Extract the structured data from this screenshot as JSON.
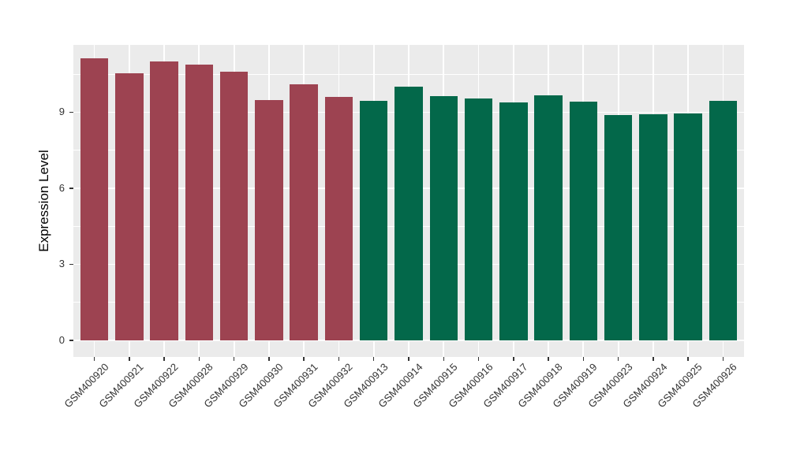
{
  "figure": {
    "background": "#FFFFFF",
    "panel_background": "#EBEBEB",
    "grid_color": "#FFFFFF",
    "axis_text_color": "#333333",
    "tick_color": "#333333",
    "axis_title_color": "#000000"
  },
  "chart_data": {
    "type": "bar",
    "title": "",
    "xlabel": "",
    "ylabel": "Expression Level",
    "ylim": [
      -0.65,
      11.66
    ],
    "yticks": [
      0,
      3,
      6,
      9
    ],
    "yminor": [
      1.5,
      4.5,
      7.5,
      10.5
    ],
    "grid": true,
    "legend_position": "none",
    "x_tick_rotation": 45,
    "bar_colors": {
      "maroon": "#9D4351",
      "green": "#03684A"
    },
    "categories": [
      "GSM400920",
      "GSM400921",
      "GSM400922",
      "GSM400928",
      "GSM400929",
      "GSM400930",
      "GSM400931",
      "GSM400932",
      "GSM400913",
      "GSM400914",
      "GSM400915",
      "GSM400916",
      "GSM400917",
      "GSM400918",
      "GSM400919",
      "GSM400923",
      "GSM400924",
      "GSM400925",
      "GSM400926"
    ],
    "values": [
      11.13,
      10.55,
      11.0,
      10.88,
      10.6,
      9.47,
      10.1,
      9.6,
      9.45,
      10.0,
      9.64,
      9.54,
      9.4,
      9.67,
      9.42,
      8.89,
      8.92,
      8.95,
      9.45
    ],
    "groups": [
      "maroon",
      "maroon",
      "maroon",
      "maroon",
      "maroon",
      "maroon",
      "maroon",
      "maroon",
      "green",
      "green",
      "green",
      "green",
      "green",
      "green",
      "green",
      "green",
      "green",
      "green",
      "green"
    ]
  }
}
